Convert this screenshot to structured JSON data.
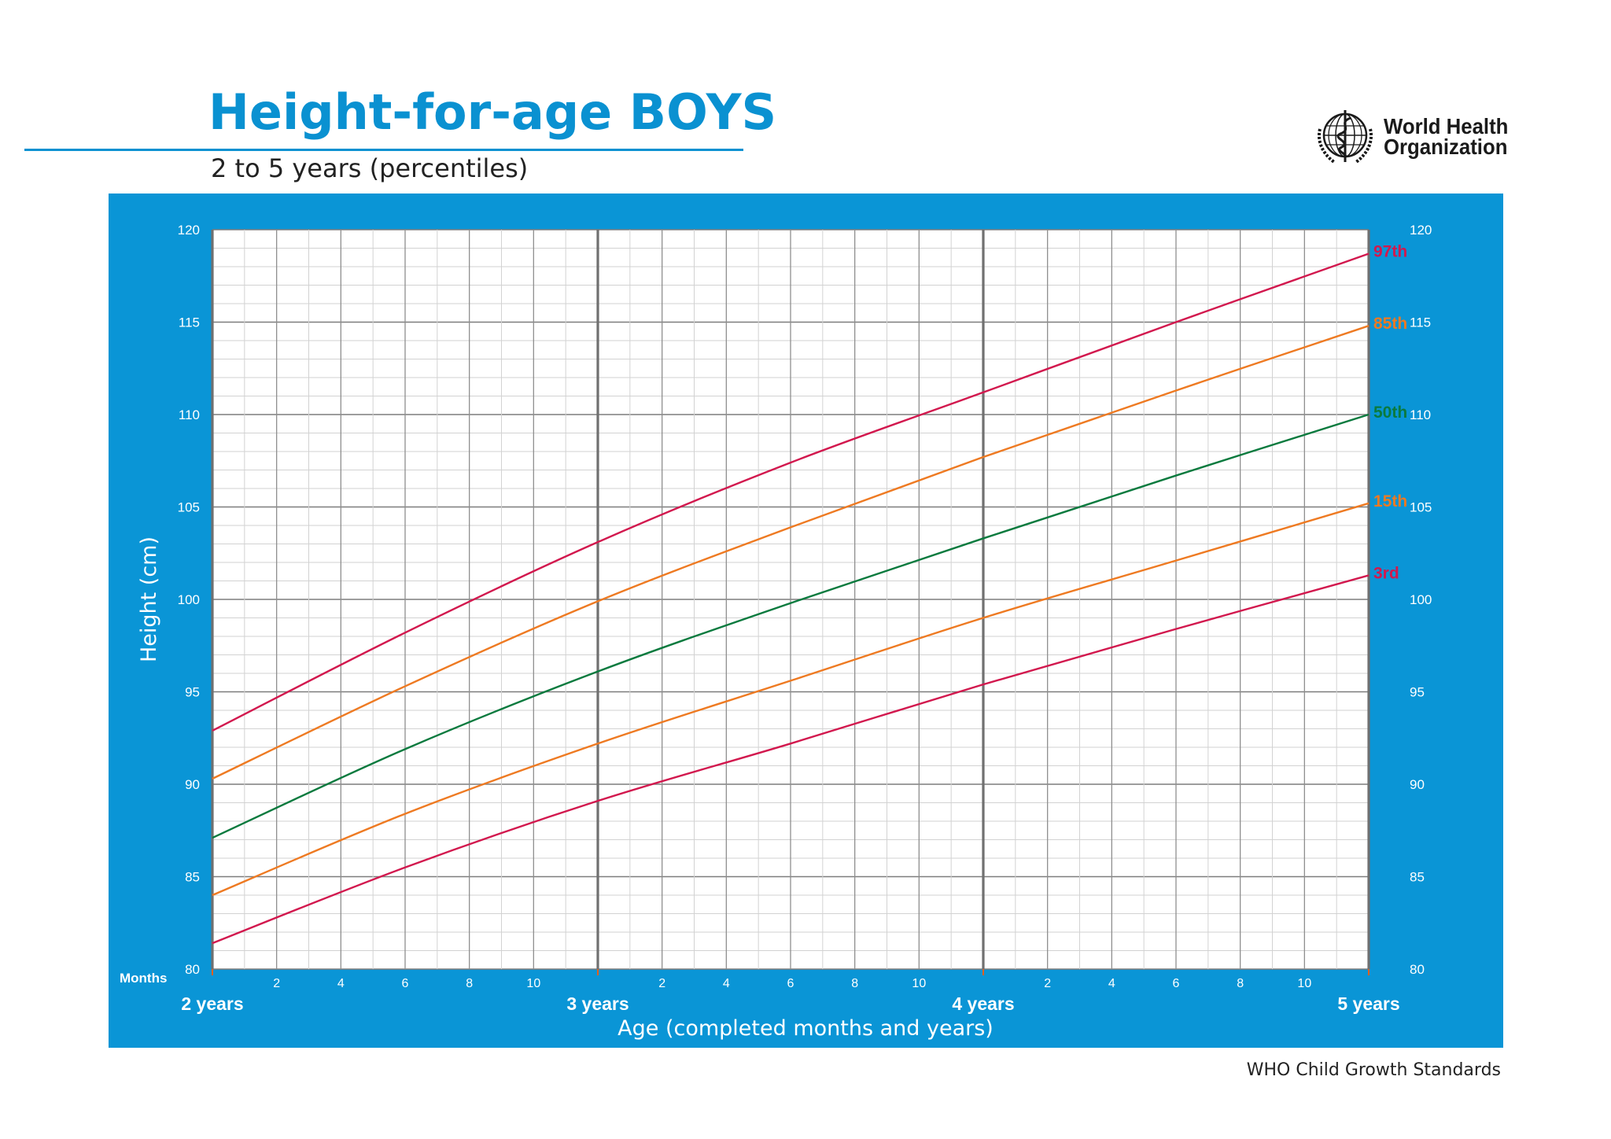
{
  "title": "Height-for-age BOYS",
  "subtitle": "2 to 5 years (percentiles)",
  "organization": {
    "line1": "World Health",
    "line2": "Organization",
    "logo_icon": "who-emblem-icon"
  },
  "footer": "WHO Child Growth Standards",
  "colors": {
    "brand": "#0a91d1",
    "panel": "#0a95d6",
    "red": "#d2184e",
    "orange": "#ee7a22",
    "green": "#0a7a3e"
  },
  "chart_data": {
    "type": "line",
    "title": "Height-for-age BOYS",
    "subtitle": "2 to 5 years (percentiles)",
    "xlabel": "Age (completed months and years)",
    "ylabel": "Height (cm)",
    "months_label": "Months",
    "xlim": [
      24,
      60
    ],
    "ylim": [
      80,
      120
    ],
    "y_ticks": [
      80,
      85,
      90,
      95,
      100,
      105,
      110,
      115,
      120
    ],
    "x_month_ticks": [
      {
        "x": 26,
        "label": "2"
      },
      {
        "x": 28,
        "label": "4"
      },
      {
        "x": 30,
        "label": "6"
      },
      {
        "x": 32,
        "label": "8"
      },
      {
        "x": 34,
        "label": "10"
      },
      {
        "x": 38,
        "label": "2"
      },
      {
        "x": 40,
        "label": "4"
      },
      {
        "x": 42,
        "label": "6"
      },
      {
        "x": 44,
        "label": "8"
      },
      {
        "x": 46,
        "label": "10"
      },
      {
        "x": 50,
        "label": "2"
      },
      {
        "x": 52,
        "label": "4"
      },
      {
        "x": 54,
        "label": "6"
      },
      {
        "x": 56,
        "label": "8"
      },
      {
        "x": 58,
        "label": "10"
      }
    ],
    "x_year_ticks": [
      {
        "x": 24,
        "label": "2 years"
      },
      {
        "x": 36,
        "label": "3 years"
      },
      {
        "x": 48,
        "label": "4 years"
      },
      {
        "x": 60,
        "label": "5 years"
      }
    ],
    "grid": true,
    "x": [
      24,
      30,
      36,
      42,
      48,
      54,
      60
    ],
    "series": [
      {
        "name": "97th",
        "color": "#d2184e",
        "values": [
          92.9,
          98.2,
          103.1,
          107.4,
          111.2,
          115.0,
          118.7
        ]
      },
      {
        "name": "85th",
        "color": "#ee7a22",
        "values": [
          90.3,
          95.3,
          99.9,
          103.9,
          107.7,
          111.3,
          114.8
        ]
      },
      {
        "name": "50th",
        "color": "#0a7a3e",
        "values": [
          87.1,
          91.9,
          96.1,
          99.8,
          103.3,
          106.7,
          110.0
        ]
      },
      {
        "name": "15th",
        "color": "#ee7a22",
        "values": [
          84.0,
          88.4,
          92.2,
          95.6,
          99.0,
          102.1,
          105.2
        ]
      },
      {
        "name": "3rd",
        "color": "#d2184e",
        "values": [
          81.4,
          85.5,
          89.1,
          92.2,
          95.4,
          98.4,
          101.3
        ]
      }
    ]
  }
}
